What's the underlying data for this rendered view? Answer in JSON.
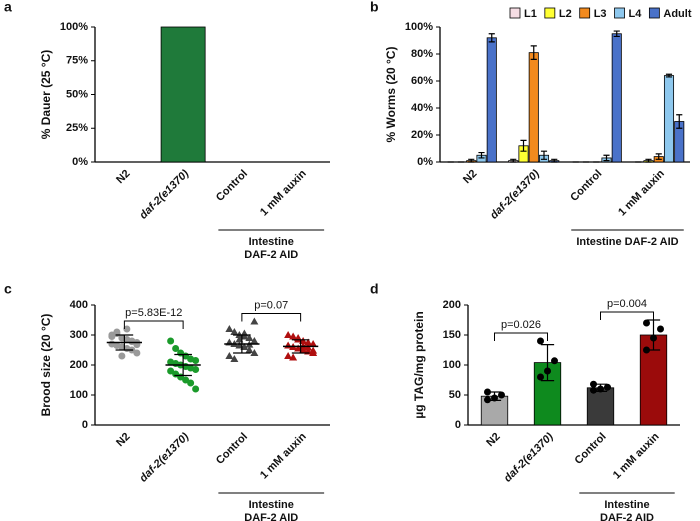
{
  "chart_data": [
    {
      "type": "bar",
      "panel": "a",
      "ylabel": "% Dauer (25 °C)",
      "categories": [
        "N2",
        "daf-2(e1370)",
        "Control",
        "1 mM auxin"
      ],
      "values": [
        0,
        100,
        0,
        0
      ],
      "color": "#1f7a3a",
      "ylim": [
        0,
        100
      ],
      "yticks": [
        {
          "value": 0,
          "label": "0%"
        },
        {
          "value": 25,
          "label": "25%"
        },
        {
          "value": 50,
          "label": "50%"
        },
        {
          "value": 75,
          "label": "75%"
        },
        {
          "value": 100,
          "label": "100%"
        }
      ],
      "group_label": [
        "Intestine",
        "DAF-2 AID"
      ]
    },
    {
      "type": "bar",
      "panel": "b",
      "ylabel": "% Worms (20 °C)",
      "categories": [
        "N2",
        "daf-2(e1370)",
        "Control",
        "1 mM auxin"
      ],
      "series": [
        {
          "name": "L1",
          "color": "#f6dde4",
          "values": [
            0,
            1,
            0,
            0
          ],
          "errors": [
            0,
            1,
            0,
            0
          ]
        },
        {
          "name": "L2",
          "color": "#ffff33",
          "values": [
            0,
            12,
            0,
            1
          ],
          "errors": [
            0,
            4,
            0,
            1
          ]
        },
        {
          "name": "L3",
          "color": "#f28a1e",
          "values": [
            1,
            81,
            0,
            4
          ],
          "errors": [
            1,
            5,
            0,
            2
          ]
        },
        {
          "name": "L4",
          "color": "#8ec8ee",
          "values": [
            5,
            5,
            3,
            64
          ],
          "errors": [
            2,
            3,
            2,
            1
          ]
        },
        {
          "name": "Adult",
          "color": "#4a72c9",
          "values": [
            92,
            1,
            95,
            30
          ],
          "errors": [
            3,
            1,
            2,
            5
          ]
        }
      ],
      "ylim": [
        0,
        100
      ],
      "yticks": [
        {
          "value": 0,
          "label": "0%"
        },
        {
          "value": 20,
          "label": "20%"
        },
        {
          "value": 40,
          "label": "40%"
        },
        {
          "value": 60,
          "label": "60%"
        },
        {
          "value": 80,
          "label": "80%"
        },
        {
          "value": 100,
          "label": "100%"
        }
      ],
      "legend": "top",
      "group_label": "Intestine DAF-2 AID"
    },
    {
      "type": "dot",
      "panel": "c",
      "ylabel": "Brood size (20 °C)",
      "categories": [
        "N2",
        "daf-2(e1370)",
        "Control",
        "1 mM auxin"
      ],
      "colors": [
        "#9a9a9a",
        "#1a9a2a",
        "#444444",
        "#b00f0f"
      ],
      "markers": [
        "circle",
        "circle",
        "triangle",
        "triangle"
      ],
      "points": [
        [
          300,
          310,
          290,
          285,
          280,
          275,
          270,
          265,
          260,
          255,
          250,
          240,
          295,
          305,
          230,
          320,
          278,
          268
        ],
        [
          280,
          255,
          240,
          230,
          220,
          215,
          210,
          205,
          200,
          195,
          190,
          185,
          180,
          170,
          160,
          150,
          140,
          120
        ],
        [
          320,
          310,
          300,
          295,
          290,
          280,
          275,
          270,
          265,
          260,
          250,
          240,
          230,
          220,
          285,
          305,
          268,
          345
        ],
        [
          300,
          295,
          290,
          280,
          275,
          270,
          265,
          260,
          255,
          250,
          245,
          240,
          230,
          225,
          285,
          262,
          258,
          248
        ]
      ],
      "means": [
        275,
        200,
        270,
        262
      ],
      "errors": [
        25,
        35,
        30,
        22
      ],
      "ylim": [
        0,
        400
      ],
      "yticks": [
        0,
        100,
        200,
        300,
        400
      ],
      "annotations": [
        "p=5.83E-12",
        "p=0.07"
      ],
      "group_label": [
        "Intestine",
        "DAF-2 AID"
      ]
    },
    {
      "type": "bar",
      "panel": "d",
      "ylabel": "µg TAG/mg protein",
      "categories": [
        "N2",
        "daf-2(e1370)",
        "Control",
        "1 mM auxin"
      ],
      "values": [
        48,
        104,
        62,
        150
      ],
      "errors": [
        7,
        30,
        6,
        25
      ],
      "colors": [
        "#a9a9a9",
        "#0e8a1e",
        "#3a3a3a",
        "#9b0b0b"
      ],
      "points": [
        [
          42,
          45,
          50,
          55
        ],
        [
          80,
          90,
          107,
          140
        ],
        [
          58,
          60,
          63,
          68
        ],
        [
          125,
          145,
          160,
          170
        ]
      ],
      "ylim": [
        0,
        200
      ],
      "yticks": [
        0,
        50,
        100,
        150,
        200
      ],
      "annotations": [
        "p=0.026",
        "p=0.004"
      ],
      "group_label": [
        "Intestine",
        "DAF-2 AID"
      ]
    }
  ]
}
